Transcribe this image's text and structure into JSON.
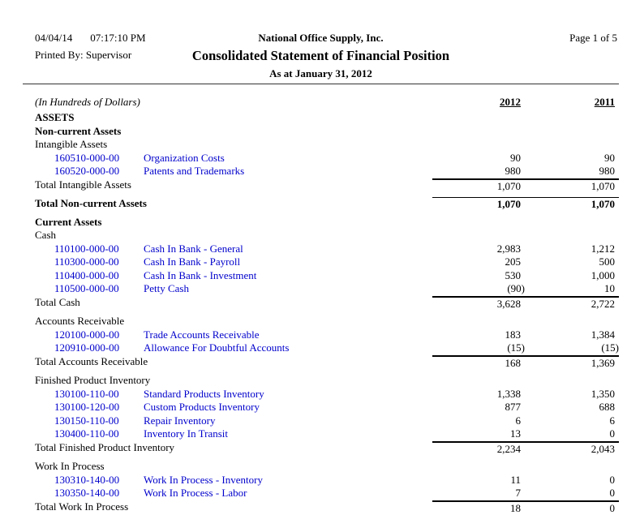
{
  "header": {
    "date": "04/04/14",
    "time": "07:17:10 PM",
    "printed_by": "Printed By: Supervisor",
    "company": "National Office Supply, Inc.",
    "title": "Consolidated Statement of Financial Position",
    "subtitle": "As at January 31, 2012",
    "page_label": "Page 1 of 5"
  },
  "columns": {
    "units_note": "(In Hundreds of Dollars)",
    "year_1": "2012",
    "year_2": "2011"
  },
  "colors": {
    "account_link_blue": "#0000cc",
    "text_black": "#000000",
    "rule_black": "#000000"
  },
  "body": {
    "lines": [
      {
        "type": "heading-bold",
        "label": "ASSETS"
      },
      {
        "type": "heading-bold",
        "label": "Non-current Assets"
      },
      {
        "type": "heading",
        "label": "Intangible Assets"
      },
      {
        "type": "account",
        "code": "160510-000-00",
        "name": "Organization Costs",
        "v2012": "90",
        "v2011": "90"
      },
      {
        "type": "account",
        "code": "160520-000-00",
        "name": "Patents and Trademarks",
        "v2012": "980",
        "v2011": "980"
      },
      {
        "type": "total",
        "label": "Total Intangible Assets",
        "v2012": "1,070",
        "v2011": "1,070"
      },
      {
        "type": "spacer"
      },
      {
        "type": "total-bold",
        "label": "Total Non-current Assets",
        "v2012": "1,070",
        "v2011": "1,070"
      },
      {
        "type": "spacer"
      },
      {
        "type": "heading-bold",
        "label": "Current Assets"
      },
      {
        "type": "heading",
        "label": "Cash"
      },
      {
        "type": "account",
        "code": "110100-000-00",
        "name": "Cash In Bank - General",
        "v2012": "2,983",
        "v2011": "1,212"
      },
      {
        "type": "account",
        "code": "110300-000-00",
        "name": "Cash In Bank - Payroll",
        "v2012": "205",
        "v2011": "500"
      },
      {
        "type": "account",
        "code": "110400-000-00",
        "name": "Cash In Bank - Investment",
        "v2012": "530",
        "v2011": "1,000"
      },
      {
        "type": "account",
        "code": "110500-000-00",
        "name": "Petty Cash",
        "v2012": "(90)",
        "v2011": "10"
      },
      {
        "type": "total",
        "label": "Total Cash",
        "v2012": "3,628",
        "v2011": "2,722"
      },
      {
        "type": "spacer"
      },
      {
        "type": "heading",
        "label": "Accounts Receivable"
      },
      {
        "type": "account",
        "code": "120100-000-00",
        "name": "Trade Accounts Receivable",
        "v2012": "183",
        "v2011": "1,384"
      },
      {
        "type": "account",
        "code": "120910-000-00",
        "name": "Allowance For Doubtful Accounts",
        "v2012": "(15)",
        "v2011": "(15)"
      },
      {
        "type": "total",
        "label": "Total Accounts Receivable",
        "v2012": "168",
        "v2011": "1,369"
      },
      {
        "type": "spacer"
      },
      {
        "type": "heading",
        "label": "Finished Product Inventory"
      },
      {
        "type": "account",
        "code": "130100-110-00",
        "name": "Standard Products Inventory",
        "v2012": "1,338",
        "v2011": "1,350"
      },
      {
        "type": "account",
        "code": "130100-120-00",
        "name": "Custom Products Inventory",
        "v2012": "877",
        "v2011": "688"
      },
      {
        "type": "account",
        "code": "130150-110-00",
        "name": "Repair Inventory",
        "v2012": "6",
        "v2011": "6"
      },
      {
        "type": "account",
        "code": "130400-110-00",
        "name": "Inventory In Transit",
        "v2012": "13",
        "v2011": "0"
      },
      {
        "type": "total",
        "label": "Total Finished Product Inventory",
        "v2012": "2,234",
        "v2011": "2,043"
      },
      {
        "type": "spacer"
      },
      {
        "type": "heading",
        "label": "Work In Process"
      },
      {
        "type": "account",
        "code": "130310-140-00",
        "name": "Work In Process - Inventory",
        "v2012": "11",
        "v2011": "0"
      },
      {
        "type": "account",
        "code": "130350-140-00",
        "name": "Work In Process - Labor",
        "v2012": "7",
        "v2011": "0"
      },
      {
        "type": "total",
        "label": "Total Work In Process",
        "v2012": "18",
        "v2011": "0"
      }
    ]
  }
}
